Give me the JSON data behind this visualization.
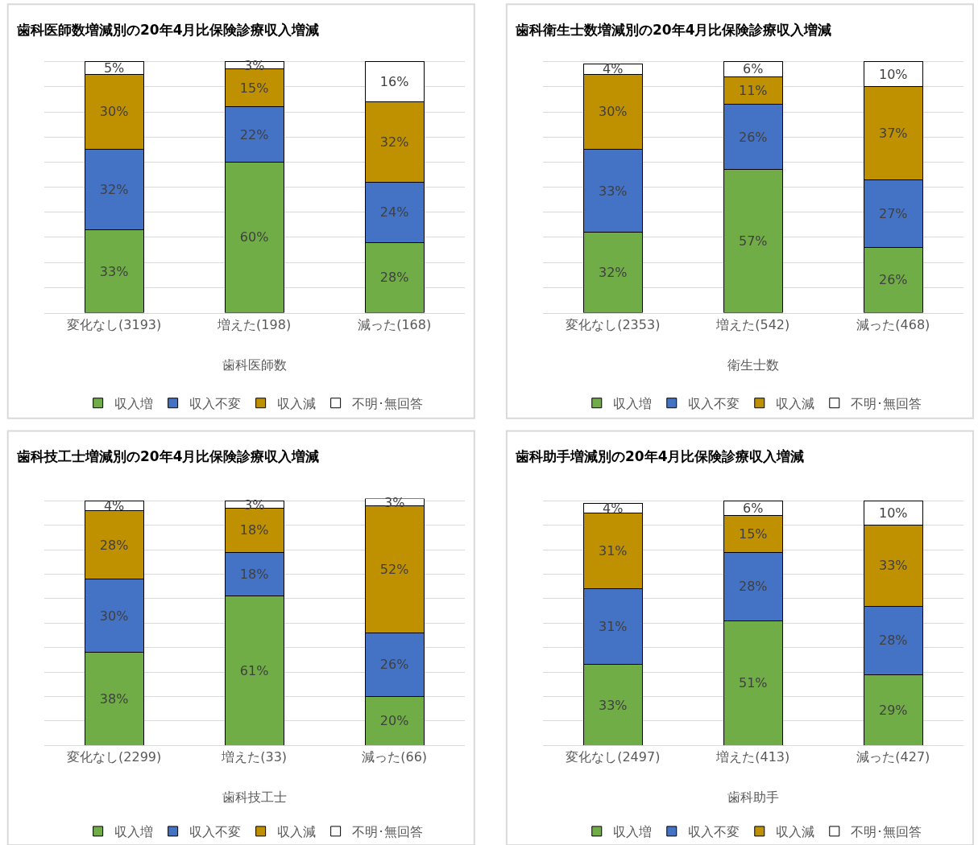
{
  "chart_data": [
    {
      "type": "bar",
      "stacked": true,
      "title": "歯科医師数増減別の20年4月比保険診療収入増減",
      "xlabel": "歯科医師数",
      "categories": [
        "変化なし(3193)",
        "増えた(198)",
        "減った(168)"
      ],
      "ylim": [
        0,
        101
      ],
      "yticks": [
        {
          "value": 0,
          "label": null
        },
        {
          "value": 10,
          "label": null
        },
        {
          "value": 20,
          "label": null
        },
        {
          "value": 30,
          "label": null
        },
        {
          "value": 40,
          "label": null
        },
        {
          "value": 50,
          "label": null
        },
        {
          "value": 60,
          "label": null
        },
        {
          "value": 70,
          "label": null
        },
        {
          "value": 80,
          "label": null
        },
        {
          "value": 90,
          "label": null
        },
        {
          "value": 100,
          "label": null
        }
      ],
      "grid": "y",
      "tick_labels": "x",
      "legend": "bottom",
      "series": [
        {
          "name": "収入増",
          "color": "#70ad47",
          "values": [
            33,
            60,
            28
          ],
          "value_labels": [
            "33%",
            "60%",
            "28%"
          ]
        },
        {
          "name": "収入不変",
          "color": "#4472c4",
          "values": [
            32,
            22,
            24
          ],
          "value_labels": [
            "32%",
            "22%",
            "24%"
          ]
        },
        {
          "name": "収入減",
          "color": "#bf9000",
          "values": [
            30,
            15,
            32
          ],
          "value_labels": [
            "30%",
            "15%",
            "32%"
          ]
        },
        {
          "name": "不明･無回答",
          "color": "#ffffff",
          "values": [
            5,
            3,
            16
          ],
          "value_labels": [
            "5%",
            "3%",
            "16%"
          ]
        }
      ]
    },
    {
      "type": "bar",
      "stacked": true,
      "title": "歯科衛生士数増減別の20年4月比保険診療収入増減",
      "xlabel": "衛生士数",
      "categories": [
        "変化なし(2353)",
        "増えた(542)",
        "減った(468)"
      ],
      "ylim": [
        0,
        101
      ],
      "yticks": [
        {
          "value": 0,
          "label": null
        },
        {
          "value": 10,
          "label": null
        },
        {
          "value": 20,
          "label": null
        },
        {
          "value": 30,
          "label": null
        },
        {
          "value": 40,
          "label": null
        },
        {
          "value": 50,
          "label": null
        },
        {
          "value": 60,
          "label": null
        },
        {
          "value": 70,
          "label": null
        },
        {
          "value": 80,
          "label": null
        },
        {
          "value": 90,
          "label": null
        },
        {
          "value": 100,
          "label": null
        }
      ],
      "grid": "y",
      "tick_labels": "x",
      "legend": "bottom",
      "series": [
        {
          "name": "収入増",
          "color": "#70ad47",
          "values": [
            32,
            57,
            26
          ],
          "value_labels": [
            "32%",
            "57%",
            "26%"
          ]
        },
        {
          "name": "収入不変",
          "color": "#4472c4",
          "values": [
            33,
            26,
            27
          ],
          "value_labels": [
            "33%",
            "26%",
            "27%"
          ]
        },
        {
          "name": "収入減",
          "color": "#bf9000",
          "values": [
            30,
            11,
            37
          ],
          "value_labels": [
            "30%",
            "11%",
            "37%"
          ]
        },
        {
          "name": "不明･無回答",
          "color": "#ffffff",
          "values": [
            4,
            6,
            10
          ],
          "value_labels": [
            "4%",
            "6%",
            "10%"
          ]
        }
      ]
    },
    {
      "type": "bar",
      "stacked": true,
      "title": "歯科技工士増減別の20年4月比保険診療収入増減",
      "xlabel": "歯科技工士",
      "categories": [
        "変化なし(2299)",
        "増えた(33)",
        "減った(66)"
      ],
      "ylim": [
        0,
        101
      ],
      "yticks": [
        {
          "value": 0,
          "label": null
        },
        {
          "value": 10,
          "label": null
        },
        {
          "value": 20,
          "label": null
        },
        {
          "value": 30,
          "label": null
        },
        {
          "value": 40,
          "label": null
        },
        {
          "value": 50,
          "label": null
        },
        {
          "value": 60,
          "label": null
        },
        {
          "value": 70,
          "label": null
        },
        {
          "value": 80,
          "label": null
        },
        {
          "value": 90,
          "label": null
        },
        {
          "value": 100,
          "label": null
        }
      ],
      "grid": "y",
      "tick_labels": "x",
      "legend": "bottom",
      "series": [
        {
          "name": "収入増",
          "color": "#70ad47",
          "values": [
            38,
            61,
            20
          ],
          "value_labels": [
            "38%",
            "61%",
            "20%"
          ]
        },
        {
          "name": "収入不変",
          "color": "#4472c4",
          "values": [
            30,
            18,
            26
          ],
          "value_labels": [
            "30%",
            "18%",
            "26%"
          ]
        },
        {
          "name": "収入減",
          "color": "#bf9000",
          "values": [
            28,
            18,
            52
          ],
          "value_labels": [
            "28%",
            "18%",
            "52%"
          ]
        },
        {
          "name": "不明･無回答",
          "color": "#ffffff",
          "values": [
            4,
            3,
            3
          ],
          "value_labels": [
            "4%",
            "3%",
            "3%"
          ]
        }
      ]
    },
    {
      "type": "bar",
      "stacked": true,
      "title": "歯科助手増減別の20年4月比保険診療収入増減",
      "xlabel": "歯科助手",
      "categories": [
        "変化なし(2497)",
        "増えた(413)",
        "減った(427)"
      ],
      "ylim": [
        0,
        101
      ],
      "yticks": [
        {
          "value": 0,
          "label": null
        },
        {
          "value": 10,
          "label": null
        },
        {
          "value": 20,
          "label": null
        },
        {
          "value": 30,
          "label": null
        },
        {
          "value": 40,
          "label": null
        },
        {
          "value": 50,
          "label": null
        },
        {
          "value": 60,
          "label": null
        },
        {
          "value": 70,
          "label": null
        },
        {
          "value": 80,
          "label": null
        },
        {
          "value": 90,
          "label": null
        },
        {
          "value": 100,
          "label": null
        }
      ],
      "grid": "y",
      "tick_labels": "x",
      "legend": "bottom",
      "series": [
        {
          "name": "収入増",
          "color": "#70ad47",
          "values": [
            33,
            51,
            29
          ],
          "value_labels": [
            "33%",
            "51%",
            "29%"
          ]
        },
        {
          "name": "収入不変",
          "color": "#4472c4",
          "values": [
            31,
            28,
            28
          ],
          "value_labels": [
            "31%",
            "28%",
            "28%"
          ]
        },
        {
          "name": "収入減",
          "color": "#bf9000",
          "values": [
            31,
            15,
            33
          ],
          "value_labels": [
            "31%",
            "15%",
            "33%"
          ]
        },
        {
          "name": "不明･無回答",
          "color": "#ffffff",
          "values": [
            4,
            6,
            10
          ],
          "value_labels": [
            "4%",
            "6%",
            "10%"
          ]
        }
      ]
    }
  ]
}
